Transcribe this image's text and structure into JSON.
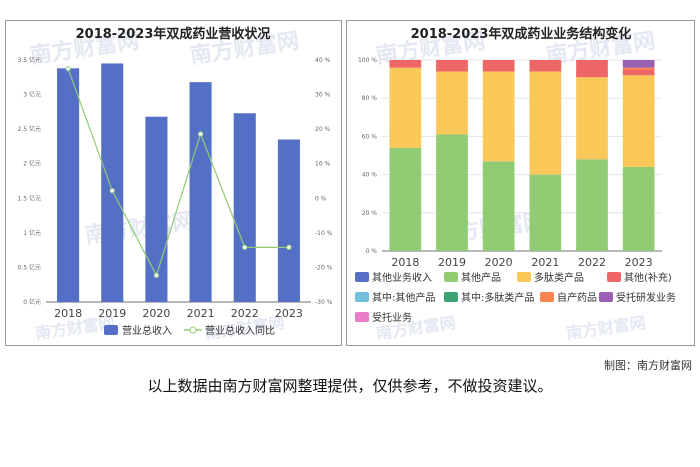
{
  "watermark": "南方财富网",
  "credit": "制图：南方财富网",
  "footnote": "以上数据由南方财富网整理提供，仅供参考，不做投资建议。",
  "chart_data": [
    {
      "type": "bar",
      "title": "2018-2023年双成药业营收状况",
      "categories": [
        "2018",
        "2019",
        "2020",
        "2021",
        "2022",
        "2023"
      ],
      "ylim": [
        0,
        3.5
      ],
      "yticks": [
        "0 亿元",
        "0.5 亿元",
        "1 亿元",
        "1.5 亿元",
        "2 亿元",
        "2.5 亿元",
        "3 亿元",
        "3.5 亿元"
      ],
      "y2lim": [
        -30,
        40
      ],
      "y2ticks": [
        "-30 %",
        "-20 %",
        "-10 %",
        "0 %",
        "10 %",
        "20 %",
        "30 %",
        "40 %"
      ],
      "series": [
        {
          "name": "营业总收入",
          "kind": "bar",
          "color": "#5470c6",
          "values": [
            3.38,
            3.45,
            2.68,
            3.18,
            2.73,
            2.35
          ]
        },
        {
          "name": "营业总收入同比",
          "kind": "line",
          "axis": "right",
          "color": "#91cc75",
          "values": [
            37.5,
            2.2,
            -22.3,
            18.6,
            -14.2,
            -14.2
          ]
        }
      ],
      "legend": "bottom",
      "grid": false
    },
    {
      "type": "bar",
      "stacked": true,
      "title": "2018-2023年双成药业业务结构变化",
      "categories": [
        "2018",
        "2019",
        "2020",
        "2021",
        "2022",
        "2023"
      ],
      "ylim": [
        0,
        100
      ],
      "yticks": [
        "0 %",
        "20 %",
        "40 %",
        "60 %",
        "80 %",
        "100 %"
      ],
      "series": [
        {
          "name": "其他业务收入",
          "color": "#5470c6",
          "values": [
            0,
            0,
            0,
            0,
            0,
            0
          ]
        },
        {
          "name": "其他产品",
          "color": "#91cc75",
          "values": [
            54,
            61,
            47,
            40,
            48,
            44
          ]
        },
        {
          "name": "多肽类产品",
          "color": "#fac858",
          "values": [
            42,
            33,
            47,
            54,
            43,
            48
          ]
        },
        {
          "name": "其他(补充)",
          "color": "#ee6666",
          "values": [
            4,
            6,
            6,
            6,
            9,
            3
          ]
        },
        {
          "name": "其中:其他产品",
          "color": "#73c0de",
          "values": [
            0,
            0,
            0,
            0,
            0,
            0
          ]
        },
        {
          "name": "其中:多肽类产品",
          "color": "#3ba272",
          "values": [
            0,
            0,
            0,
            0,
            0,
            0
          ]
        },
        {
          "name": "自产药品",
          "color": "#fc8452",
          "values": [
            0,
            0,
            0,
            0,
            0,
            1
          ]
        },
        {
          "name": "受托研发业务",
          "color": "#9a60b4",
          "values": [
            0,
            0,
            0,
            0,
            0,
            4
          ]
        },
        {
          "name": "受托业务",
          "color": "#ea7ccc",
          "values": [
            0,
            0,
            0,
            0,
            0,
            0
          ]
        }
      ],
      "legend": "bottom",
      "grid": true
    }
  ]
}
